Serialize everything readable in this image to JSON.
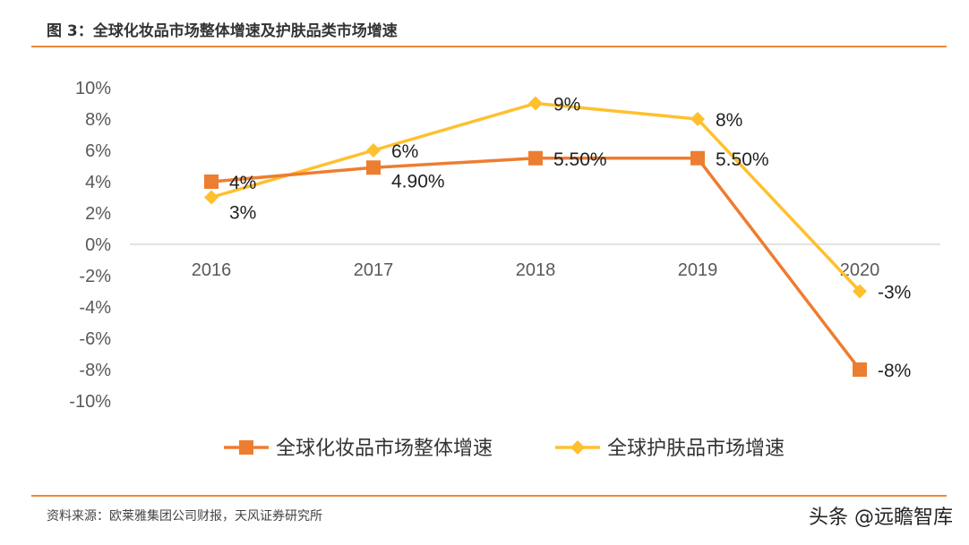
{
  "title": "图 3：全球化妆品市场整体增速及护肤品类市场增速",
  "source": "资料来源：欧莱雅集团公司财报，天风证券研究所",
  "watermark": "头条 @远瞻智库",
  "chart_data": {
    "type": "line",
    "categories": [
      "2016",
      "2017",
      "2018",
      "2019",
      "2020"
    ],
    "ylim": [
      -10,
      10
    ],
    "yticks": [
      10,
      8,
      6,
      4,
      2,
      0,
      -2,
      -4,
      -6,
      -8,
      -10
    ],
    "ytick_labels": [
      "10%",
      "8%",
      "6%",
      "4%",
      "2%",
      "0%",
      "-2%",
      "-4%",
      "-6%",
      "-8%",
      "-10%"
    ],
    "legend_position": "bottom",
    "series": [
      {
        "name": "全球化妆品市场整体增速",
        "color": "#ED7D31",
        "marker": "square",
        "values": [
          4,
          4.9,
          5.5,
          5.5,
          -8
        ],
        "labels": [
          "4%",
          "4.90%",
          "5.50%",
          "5.50%",
          "-8%"
        ]
      },
      {
        "name": "全球护肤品市场增速",
        "color": "#FFC02E",
        "marker": "diamond",
        "values": [
          3,
          6,
          9,
          8,
          -3
        ],
        "labels": [
          "3%",
          "6%",
          "9%",
          "8%",
          "-3%"
        ]
      }
    ]
  }
}
